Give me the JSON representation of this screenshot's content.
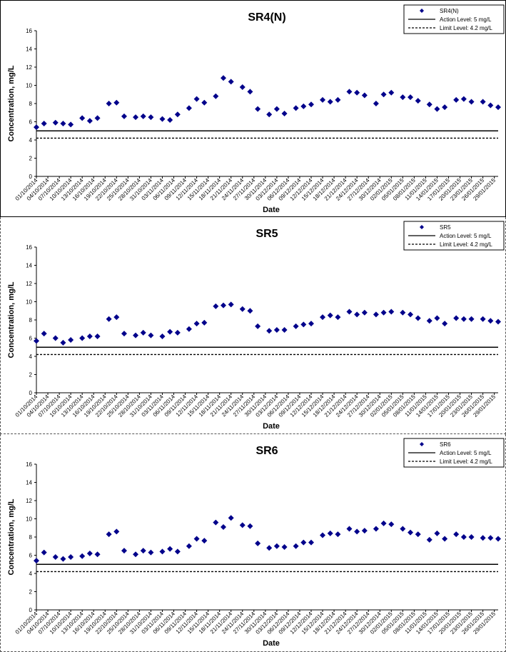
{
  "chart_data": [
    {
      "type": "scatter",
      "title": "SR4(N)",
      "xlabel": "Date",
      "ylabel": "Concentration, mg/L",
      "ylim": [
        0,
        16
      ],
      "yticks": [
        0,
        2,
        4,
        6,
        8,
        10,
        12,
        14,
        16
      ],
      "xlim": [
        "2014-10-01",
        "2015-01-30"
      ],
      "x_tick_labels": [
        "01/10/2014",
        "04/10/2014",
        "07/10/2014",
        "10/10/2014",
        "13/10/2014",
        "16/10/2014",
        "19/10/2014",
        "22/10/2014",
        "25/10/2014",
        "28/10/2014",
        "31/10/2014",
        "03/11/2014",
        "06/11/2014",
        "09/11/2014",
        "12/11/2014",
        "15/11/2014",
        "18/11/2014",
        "21/11/2014",
        "24/11/2014",
        "27/11/2014",
        "30/11/2014",
        "03/12/2014",
        "06/12/2014",
        "09/12/2014",
        "12/12/2014",
        "15/12/2014",
        "18/12/2014",
        "21/12/2014",
        "24/12/2014",
        "27/12/2014",
        "30/12/2014",
        "02/01/2015",
        "05/01/2015",
        "08/01/2015",
        "11/01/2015",
        "14/01/2015",
        "17/01/2015",
        "20/01/2015",
        "23/01/2015",
        "26/01/2015",
        "29/01/2015"
      ],
      "grid": false,
      "legend": "top-right",
      "series": [
        {
          "name": "SR4(N)",
          "marker": "diamond",
          "color": "#00008B",
          "x": [
            "2014-10-01",
            "2014-10-03",
            "2014-10-06",
            "2014-10-08",
            "2014-10-10",
            "2014-10-13",
            "2014-10-15",
            "2014-10-17",
            "2014-10-20",
            "2014-10-22",
            "2014-10-24",
            "2014-10-27",
            "2014-10-29",
            "2014-10-31",
            "2014-11-03",
            "2014-11-05",
            "2014-11-07",
            "2014-11-10",
            "2014-11-12",
            "2014-11-14",
            "2014-11-17",
            "2014-11-19",
            "2014-11-21",
            "2014-11-24",
            "2014-11-26",
            "2014-11-28",
            "2014-12-01",
            "2014-12-03",
            "2014-12-05",
            "2014-12-08",
            "2014-12-10",
            "2014-12-12",
            "2014-12-15",
            "2014-12-17",
            "2014-12-19",
            "2014-12-22",
            "2014-12-24",
            "2014-12-26",
            "2014-12-29",
            "2014-12-31",
            "2015-01-02",
            "2015-01-05",
            "2015-01-07",
            "2015-01-09",
            "2015-01-12",
            "2015-01-14",
            "2015-01-16",
            "2015-01-19",
            "2015-01-21",
            "2015-01-23",
            "2015-01-26",
            "2015-01-28",
            "2015-01-30"
          ],
          "y": [
            5.4,
            5.8,
            5.9,
            5.8,
            5.7,
            6.4,
            6.1,
            6.4,
            8.0,
            8.1,
            6.6,
            6.5,
            6.6,
            6.5,
            6.3,
            6.2,
            6.8,
            7.5,
            8.5,
            8.1,
            8.8,
            10.8,
            10.4,
            9.8,
            9.3,
            7.4,
            6.8,
            7.4,
            6.9,
            7.5,
            7.7,
            7.9,
            8.4,
            8.2,
            8.4,
            9.3,
            9.2,
            8.9,
            8.0,
            9.0,
            9.2,
            8.7,
            8.7,
            8.3,
            7.9,
            7.4,
            7.6,
            8.4,
            8.5,
            8.2,
            8.2,
            7.8,
            7.6
          ]
        },
        {
          "name": "Action Level: 5 mg/L",
          "line": "solid",
          "color": "#000000",
          "y_const": 5
        },
        {
          "name": "Limit Level: 4.2 mg/L",
          "line": "dashed",
          "color": "#000000",
          "y_const": 4.2
        }
      ]
    },
    {
      "type": "scatter",
      "title": "SR5",
      "xlabel": "Date",
      "ylabel": "Concentration, mg/L",
      "ylim": [
        0,
        16
      ],
      "yticks": [
        0,
        2,
        4,
        6,
        8,
        10,
        12,
        14,
        16
      ],
      "xlim": [
        "2014-10-01",
        "2015-01-30"
      ],
      "x_tick_labels": [
        "01/10/2014",
        "04/10/2014",
        "07/10/2014",
        "10/10/2014",
        "13/10/2014",
        "16/10/2014",
        "19/10/2014",
        "22/10/2014",
        "25/10/2014",
        "28/10/2014",
        "31/10/2014",
        "03/11/2014",
        "06/11/2014",
        "09/11/2014",
        "12/11/2014",
        "15/11/2014",
        "18/11/2014",
        "21/11/2014",
        "24/11/2014",
        "27/11/2014",
        "30/11/2014",
        "03/12/2014",
        "06/12/2014",
        "09/12/2014",
        "12/12/2014",
        "15/12/2014",
        "18/12/2014",
        "21/12/2014",
        "24/12/2014",
        "27/12/2014",
        "30/12/2014",
        "02/01/2015",
        "05/01/2015",
        "08/01/2015",
        "11/01/2015",
        "14/01/2015",
        "17/01/2015",
        "20/01/2015",
        "23/01/2015",
        "26/01/2015",
        "29/01/2015"
      ],
      "grid": false,
      "legend": "top-right",
      "series": [
        {
          "name": "SR5",
          "marker": "diamond",
          "color": "#00008B",
          "x": [
            "2014-10-01",
            "2014-10-03",
            "2014-10-06",
            "2014-10-08",
            "2014-10-10",
            "2014-10-13",
            "2014-10-15",
            "2014-10-17",
            "2014-10-20",
            "2014-10-22",
            "2014-10-24",
            "2014-10-27",
            "2014-10-29",
            "2014-10-31",
            "2014-11-03",
            "2014-11-05",
            "2014-11-07",
            "2014-11-10",
            "2014-11-12",
            "2014-11-14",
            "2014-11-17",
            "2014-11-19",
            "2014-11-21",
            "2014-11-24",
            "2014-11-26",
            "2014-11-28",
            "2014-12-01",
            "2014-12-03",
            "2014-12-05",
            "2014-12-08",
            "2014-12-10",
            "2014-12-12",
            "2014-12-15",
            "2014-12-17",
            "2014-12-19",
            "2014-12-22",
            "2014-12-24",
            "2014-12-26",
            "2014-12-29",
            "2014-12-31",
            "2015-01-02",
            "2015-01-05",
            "2015-01-07",
            "2015-01-09",
            "2015-01-12",
            "2015-01-14",
            "2015-01-16",
            "2015-01-19",
            "2015-01-21",
            "2015-01-23",
            "2015-01-26",
            "2015-01-28",
            "2015-01-30"
          ],
          "y": [
            5.7,
            6.5,
            6.0,
            5.5,
            5.8,
            6.0,
            6.2,
            6.2,
            8.1,
            8.3,
            6.5,
            6.3,
            6.6,
            6.3,
            6.2,
            6.7,
            6.6,
            7.0,
            7.6,
            7.7,
            9.5,
            9.6,
            9.7,
            9.2,
            9.0,
            7.3,
            6.8,
            6.9,
            6.9,
            7.3,
            7.5,
            7.6,
            8.3,
            8.5,
            8.3,
            8.9,
            8.6,
            8.8,
            8.6,
            8.8,
            8.9,
            8.8,
            8.6,
            8.2,
            7.9,
            8.2,
            7.6,
            8.2,
            8.1,
            8.1,
            8.1,
            7.9,
            7.8
          ]
        },
        {
          "name": "Action Level: 5 mg/L",
          "line": "solid",
          "color": "#000000",
          "y_const": 5
        },
        {
          "name": "Limit Level: 4.2 mg/L",
          "line": "dashed",
          "color": "#000000",
          "y_const": 4.2
        }
      ]
    },
    {
      "type": "scatter",
      "title": "SR6",
      "xlabel": "Date",
      "ylabel": "Concentration, mg/L",
      "ylim": [
        0,
        16
      ],
      "yticks": [
        0,
        2,
        4,
        6,
        8,
        10,
        12,
        14,
        16
      ],
      "xlim": [
        "2014-10-01",
        "2015-01-30"
      ],
      "x_tick_labels": [
        "01/10/2014",
        "04/10/2014",
        "07/10/2014",
        "10/10/2014",
        "13/10/2014",
        "16/10/2014",
        "19/10/2014",
        "22/10/2014",
        "25/10/2014",
        "28/10/2014",
        "31/10/2014",
        "03/11/2014",
        "06/11/2014",
        "09/11/2014",
        "12/11/2014",
        "15/11/2014",
        "18/11/2014",
        "21/11/2014",
        "24/11/2014",
        "27/11/2014",
        "30/11/2014",
        "03/12/2014",
        "06/12/2014",
        "09/12/2014",
        "12/12/2014",
        "15/12/2014",
        "18/12/2014",
        "21/12/2014",
        "24/12/2014",
        "27/12/2014",
        "30/12/2014",
        "02/01/2015",
        "05/01/2015",
        "08/01/2015",
        "11/01/2015",
        "14/01/2015",
        "17/01/2015",
        "20/01/2015",
        "23/01/2015",
        "26/01/2015",
        "29/01/2015"
      ],
      "grid": false,
      "legend": "top-right",
      "series": [
        {
          "name": "SR6",
          "marker": "diamond",
          "color": "#00008B",
          "x": [
            "2014-10-01",
            "2014-10-03",
            "2014-10-06",
            "2014-10-08",
            "2014-10-10",
            "2014-10-13",
            "2014-10-15",
            "2014-10-17",
            "2014-10-20",
            "2014-10-22",
            "2014-10-24",
            "2014-10-27",
            "2014-10-29",
            "2014-10-31",
            "2014-11-03",
            "2014-11-05",
            "2014-11-07",
            "2014-11-10",
            "2014-11-12",
            "2014-11-14",
            "2014-11-17",
            "2014-11-19",
            "2014-11-21",
            "2014-11-24",
            "2014-11-26",
            "2014-11-28",
            "2014-12-01",
            "2014-12-03",
            "2014-12-05",
            "2014-12-08",
            "2014-12-10",
            "2014-12-12",
            "2014-12-15",
            "2014-12-17",
            "2014-12-19",
            "2014-12-22",
            "2014-12-24",
            "2014-12-26",
            "2014-12-29",
            "2014-12-31",
            "2015-01-02",
            "2015-01-05",
            "2015-01-07",
            "2015-01-09",
            "2015-01-12",
            "2015-01-14",
            "2015-01-16",
            "2015-01-19",
            "2015-01-21",
            "2015-01-23",
            "2015-01-26",
            "2015-01-28",
            "2015-01-30"
          ],
          "y": [
            5.4,
            6.3,
            5.8,
            5.6,
            5.8,
            5.9,
            6.2,
            6.1,
            8.3,
            8.6,
            6.5,
            6.1,
            6.5,
            6.3,
            6.4,
            6.7,
            6.4,
            7.0,
            7.8,
            7.6,
            9.6,
            9.1,
            10.1,
            9.3,
            9.2,
            7.3,
            6.8,
            7.0,
            6.9,
            7.0,
            7.4,
            7.4,
            8.2,
            8.4,
            8.3,
            8.9,
            8.6,
            8.7,
            8.9,
            9.5,
            9.4,
            8.9,
            8.5,
            8.3,
            7.7,
            8.4,
            7.8,
            8.3,
            8.0,
            8.0,
            7.9,
            7.9,
            7.8
          ]
        },
        {
          "name": "Action Level: 5 mg/L",
          "line": "solid",
          "color": "#000000",
          "y_const": 5
        },
        {
          "name": "Limit Level: 4.2 mg/L",
          "line": "dashed",
          "color": "#000000",
          "y_const": 4.2
        }
      ]
    }
  ]
}
